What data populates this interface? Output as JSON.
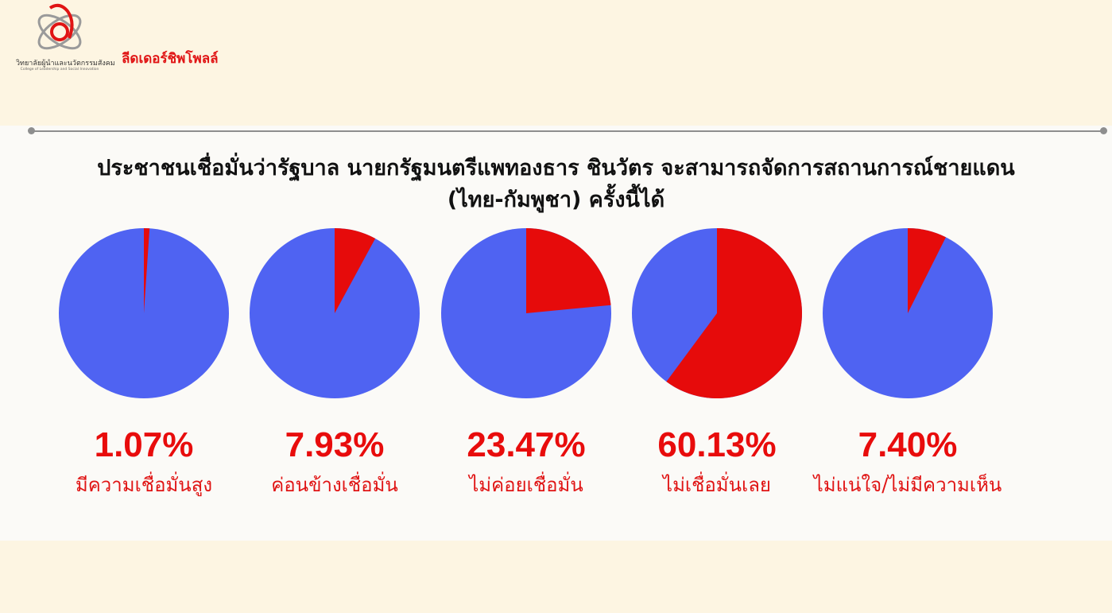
{
  "header": {
    "logo_text": "วิทยาลัยผู้นำและนวัตกรรมสังคม",
    "logo_subtext": "College of Leadership and Social Innovation",
    "brand": "ลีดเดอร์ชิพโพลล์"
  },
  "colors": {
    "red": "#e60b0b",
    "blue": "#4f63f2",
    "label_red": "#e01414",
    "background": "#fbfaf7"
  },
  "chart_data": {
    "type": "pie",
    "title_line1": "ประชาชนเชื่อมั่นว่ารัฐบาล นายกรัฐมนตรีแพทองธาร ชินวัตร จะสามารถจัดการสถานการณ์ชายแดน",
    "title_line2": "(ไทย-กัมพูชา) ครั้งนี้ได้",
    "pies": [
      {
        "label": "มีความเชื่อมั่นสูง",
        "value": 1.07,
        "display": "1.07%"
      },
      {
        "label": "ค่อนข้างเชื่อมั่น",
        "value": 7.93,
        "display": "7.93%"
      },
      {
        "label": "ไม่ค่อยเชื่อมั่น",
        "value": 23.47,
        "display": "23.47%"
      },
      {
        "label": "ไม่เชื่อมั่นเลย",
        "value": 60.13,
        "display": "60.13%"
      },
      {
        "label": "ไม่แน่ใจ/ไม่มีความเห็น",
        "value": 7.4,
        "display": "7.40%"
      }
    ]
  }
}
